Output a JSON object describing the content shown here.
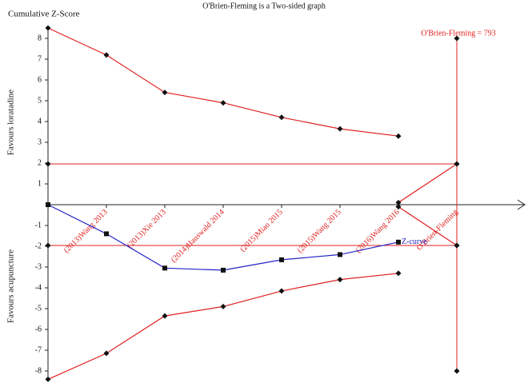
{
  "chart_data": {
    "type": "tsa",
    "title": "O'Brien-Fleming is a Two-sided graph",
    "y_label": "Cumulative Z-Score",
    "upper_label": "Favours loratadine",
    "lower_label": "Favours acupuncture",
    "categories": [
      null,
      "(2013)Wang 2013",
      "(2013)Xie 2013",
      "(2014)Hauswald 2014",
      "(2015)Miao 2015",
      "(2015)Wang 2015",
      "(2016)Wang 2016",
      "O'Brien-Fleming"
    ],
    "ylim": [
      -8.5,
      8.5
    ],
    "yticks": [
      -8,
      -7,
      -6,
      -5,
      -4,
      -3,
      -2,
      -1,
      1,
      2,
      3,
      4,
      5,
      6,
      7,
      8
    ],
    "series": [
      {
        "name": "Z-curve",
        "color": "#2323c8",
        "marker": "square",
        "values": [
          0,
          -1.4,
          -3.05,
          -3.15,
          -2.65,
          -2.4,
          -1.8,
          null
        ]
      },
      {
        "color": "#e02020",
        "marker": "diamond",
        "values": [
          8.5,
          7.2,
          5.4,
          4.9,
          4.2,
          3.65,
          3.3,
          null
        ]
      },
      {
        "color": "#e02020",
        "marker": "diamond",
        "values": [
          -8.4,
          -7.15,
          -5.35,
          -4.9,
          -4.15,
          -3.6,
          -3.3,
          null
        ]
      },
      {
        "color": "#e02020",
        "marker": "diamond",
        "values": [
          null,
          null,
          null,
          null,
          null,
          null,
          0.1,
          1.96
        ]
      },
      {
        "color": "#e02020",
        "marker": "diamond",
        "values": [
          null,
          null,
          null,
          null,
          null,
          null,
          -0.1,
          -1.96
        ]
      }
    ],
    "boundaries": [
      1.96,
      -1.96
    ],
    "boundary_color": "#e02020",
    "ris": {
      "label": "O'Brien-Fleming = 793",
      "range": [
        -8,
        8
      ],
      "color": "#e02020"
    }
  }
}
